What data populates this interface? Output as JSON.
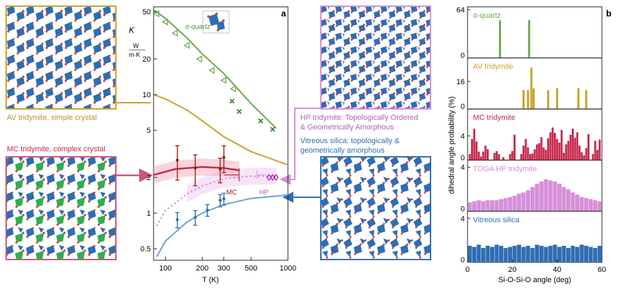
{
  "panel_a": {
    "tag": "a",
    "ylabel": "K",
    "yunit_top": "W",
    "yunit_bottom": "m·K",
    "xlabel": "T (K)",
    "series": {
      "quartz": "α-quartz",
      "mc": "MC",
      "hp": "HP"
    }
  },
  "panel_b": {
    "tag": "b",
    "ylabel": "dihedral angle probability (%)",
    "xlabel": "Si-O-Si-O angle (deg)",
    "rows": [
      {
        "name": "α-quartz",
        "tick": "64",
        "zero": "0",
        "color": "#6aa84f"
      },
      {
        "name": "AV tridymite",
        "tick": "16",
        "zero": "0",
        "color": "#c9a227"
      },
      {
        "name": "MC tridymite",
        "tick": "4",
        "zero": "0",
        "color": "#c8274b"
      },
      {
        "name": "TOGA HP tridymite",
        "tick": "4",
        "zero": "0",
        "color": "#d78fd9"
      },
      {
        "name": "Vitreous silica",
        "tick": "4",
        "zero": "0",
        "color": "#2f6db3"
      }
    ],
    "xticks": [
      "0",
      "20",
      "40",
      "60"
    ]
  },
  "structures": {
    "av": "AV tridymite, simple crystal",
    "mc": "MC tridymite, complex crystal",
    "hp_line1": "HP tridymite: Topologically Ordered",
    "hp_line2": "& Geometrically Amorphous",
    "vit_line1": "Vitreous silica: topologically &",
    "vit_line2": "geometrically amorphous"
  },
  "chart_data": [
    {
      "type": "scatter",
      "title": "",
      "xlabel": "T (K)",
      "ylabel": "K (W/m·K)",
      "xscale": "log",
      "yscale": "log",
      "xlim": [
        80,
        1000
      ],
      "ylim": [
        0.4,
        55
      ],
      "xticks": [
        "100",
        "200",
        "300",
        "500",
        "1000"
      ],
      "yticks": [
        "0.5",
        "1",
        "2",
        "5",
        "10",
        "20",
        "50"
      ],
      "series": [
        {
          "name": "α-quartz",
          "marker": "triangle-left",
          "color": "#6aa84f",
          "x": [
            85,
            100,
            120,
            150,
            190,
            240,
            300,
            360
          ],
          "y": [
            48,
            41,
            33,
            26,
            20,
            16,
            13.2,
            11.2
          ]
        },
        {
          "name": "α-quartz",
          "marker": "x",
          "color": "#2e8b2e",
          "x": [
            350,
            400,
            600,
            750
          ],
          "y": [
            8.8,
            7.2,
            6.0,
            5.1
          ]
        },
        {
          "marker": "errorbar",
          "color": "#a11a1a",
          "x": [
            125,
            175,
            280,
            300
          ],
          "y": [
            2.8,
            2.4,
            2.35,
            2.95
          ],
          "err": [
            0.9,
            0.7,
            0.55,
            0.75
          ]
        },
        {
          "marker": "errorbar",
          "color": "#2f6db3",
          "x": [
            125,
            175,
            220,
            280,
            300
          ],
          "y": [
            0.88,
            0.92,
            1.06,
            1.28,
            1.32
          ],
          "err": [
            0.13,
            0.13,
            0.12,
            0.15,
            0.15
          ]
        },
        {
          "name": "HP",
          "marker": "diamond",
          "color": "#9b2fae",
          "x": [
            700,
            750,
            800
          ],
          "y": [
            2.0,
            2.0,
            2.0
          ]
        }
      ],
      "curves": [
        {
          "color": "#6aa84f",
          "x": [
            80,
            100,
            150,
            200,
            300,
            500,
            800
          ],
          "y": [
            52,
            44,
            30,
            22,
            15,
            8.4,
            5.2
          ]
        },
        {
          "color": "#c9a227",
          "x": [
            80,
            100,
            150,
            200,
            300,
            500,
            1000
          ],
          "y": [
            10,
            9.2,
            7.4,
            6.0,
            4.4,
            3.3,
            2.55
          ]
        },
        {
          "color": "#c8274b",
          "x": [
            80,
            120,
            200,
            300,
            400
          ],
          "y": [
            2.1,
            2.35,
            2.45,
            2.4,
            2.3
          ]
        },
        {
          "color": "#d36ed6",
          "x": [
            85,
            100,
            150,
            200,
            300,
            500,
            800
          ],
          "y": [
            0.78,
            1.05,
            1.45,
            1.7,
            1.95,
            2.05,
            2.05
          ]
        },
        {
          "color": "#6e9dcf",
          "x": [
            85,
            100,
            150,
            200,
            300,
            500,
            1000
          ],
          "y": [
            0.43,
            0.58,
            0.84,
            1.0,
            1.18,
            1.33,
            1.42
          ]
        }
      ]
    },
    {
      "type": "bar",
      "xlabel": "Si-O-Si-O angle (deg)",
      "ylabel": "dihedral angle probability (%)",
      "xlim": [
        0,
        60
      ],
      "panels": [
        {
          "name": "α-quartz",
          "ymax": 64,
          "x": [
            14.5,
            27.5
          ],
          "values": [
            50,
            50
          ]
        },
        {
          "name": "AV tridymite",
          "ymax": 28,
          "x": [
            25,
            27,
            28.5,
            29.5,
            36,
            40,
            49.5,
            53
          ],
          "values": [
            11,
            11,
            24,
            12,
            11,
            12,
            12,
            11
          ]
        },
        {
          "name": "MC tridymite",
          "ymax": 8,
          "x": [
            1,
            2,
            3,
            4,
            5,
            6,
            7,
            8,
            9,
            12,
            13,
            14,
            16,
            19,
            20,
            21,
            24,
            25,
            26,
            27,
            28,
            29,
            30,
            31,
            32,
            33,
            34,
            35,
            36,
            37,
            38,
            39,
            40,
            41,
            42,
            43,
            44,
            45,
            46,
            47,
            48,
            49,
            50,
            51,
            52,
            53,
            54,
            56,
            57,
            58,
            59
          ],
          "values": [
            1,
            3.5,
            5.2,
            3.1,
            1.4,
            0.6,
            1.4,
            2.4,
            1.8,
            1.2,
            1.5,
            1,
            0.5,
            1,
            1.5,
            4.2,
            1,
            2.4,
            3.5,
            2.1,
            1,
            1.1,
            1.8,
            2.6,
            2.8,
            3.8,
            2.1,
            1.7,
            3.6,
            4.6,
            5.4,
            4.5,
            3.5,
            2.9,
            5,
            1.2,
            2.6,
            3.2,
            4.2,
            5.2,
            3.7,
            4.6,
            2.4,
            1.3,
            0.8,
            2,
            4.3,
            1,
            3.2,
            1.7,
            3.4
          ]
        },
        {
          "name": "TOGA HP tridymite",
          "ymax": 4.4,
          "x": [
            1,
            3,
            5,
            7,
            9,
            11,
            13,
            15,
            17,
            19,
            21,
            23,
            25,
            27,
            29,
            31,
            33,
            35,
            37,
            39,
            41,
            43,
            45,
            47,
            49,
            51,
            53,
            55,
            57,
            59
          ],
          "values": [
            0.8,
            0.9,
            1.0,
            0.9,
            1.0,
            1.0,
            1.0,
            1.1,
            1.2,
            1.3,
            1.4,
            1.6,
            1.7,
            1.9,
            2.2,
            2.5,
            2.7,
            2.9,
            2.8,
            2.7,
            2.5,
            2.2,
            2.0,
            1.7,
            1.5,
            1.3,
            1.2,
            1.1,
            1.0,
            0.9
          ]
        },
        {
          "name": "Vitreous silica",
          "ymax": 4.4,
          "x": [
            1,
            3,
            5,
            7,
            9,
            11,
            13,
            15,
            17,
            19,
            21,
            23,
            25,
            27,
            29,
            31,
            33,
            35,
            37,
            39,
            41,
            43,
            45,
            47,
            49,
            51,
            53,
            55,
            57,
            59
          ],
          "values": [
            1.5,
            1.4,
            1.6,
            1.3,
            1.5,
            1.4,
            1.6,
            1.5,
            1.3,
            1.4,
            1.5,
            1.6,
            1.4,
            1.5,
            1.3,
            1.6,
            1.5,
            1.4,
            1.5,
            1.6,
            1.4,
            1.5,
            1.3,
            1.5,
            1.4,
            1.6,
            1.5,
            1.4,
            1.3,
            1.5
          ]
        }
      ]
    }
  ]
}
